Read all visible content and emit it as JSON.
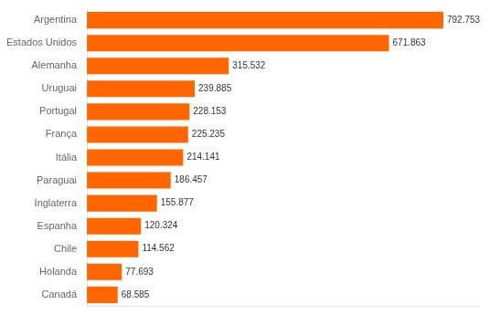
{
  "chart_data": {
    "type": "bar",
    "orientation": "horizontal",
    "categories": [
      "Canadá",
      "Holanda",
      "Chile",
      "Espanha",
      "Inglaterra",
      "Paraguai",
      "Itália",
      "França",
      "Portugal",
      "Uruguai",
      "Alemanha",
      "Estados Unidos",
      "Argentina"
    ],
    "values": [
      68585,
      77693,
      114562,
      120324,
      155877,
      186457,
      214141,
      225235,
      228153,
      239885,
      315532,
      671863,
      792753
    ],
    "value_labels": [
      "68.585",
      "77.693",
      "114.562",
      "120.324",
      "155.877",
      "186.457",
      "214.141",
      "225.235",
      "228.153",
      "239.885",
      "315.532",
      "671.863",
      "792.753"
    ],
    "color": "#FF6600",
    "xlim": [
      0,
      870000
    ],
    "data_labels": true,
    "grid": false,
    "tick_labels": "y"
  }
}
